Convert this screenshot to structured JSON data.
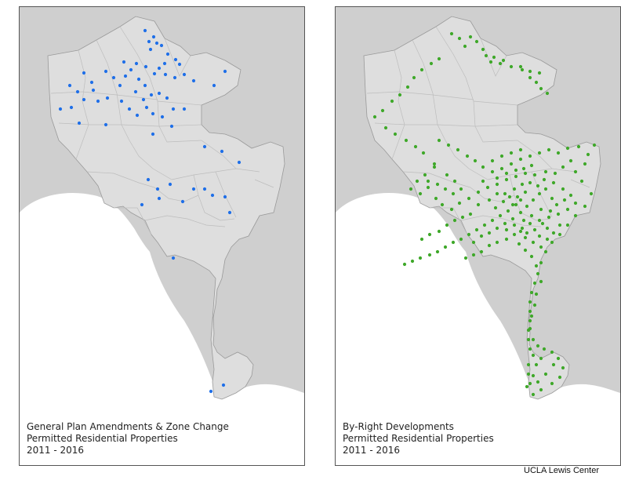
{
  "colors": {
    "background_land": "#cfcfcf",
    "city": "#dedede",
    "district_lines": "#bdbdbd",
    "ocean": "#ffffff",
    "left_points": "#1f6fe8",
    "right_points": "#3fa82a"
  },
  "panels": [
    {
      "caption": {
        "line1": "General Plan Amendments & Zone Change",
        "line2": "Permitted Residential Properties",
        "line3": "2011 - 2016"
      }
    },
    {
      "caption": {
        "line1": "By-Right Developments",
        "line2": "Permitted Residential Properties",
        "line3": "2011 - 2016"
      }
    }
  ],
  "credit": "UCLA Lewis Center"
}
